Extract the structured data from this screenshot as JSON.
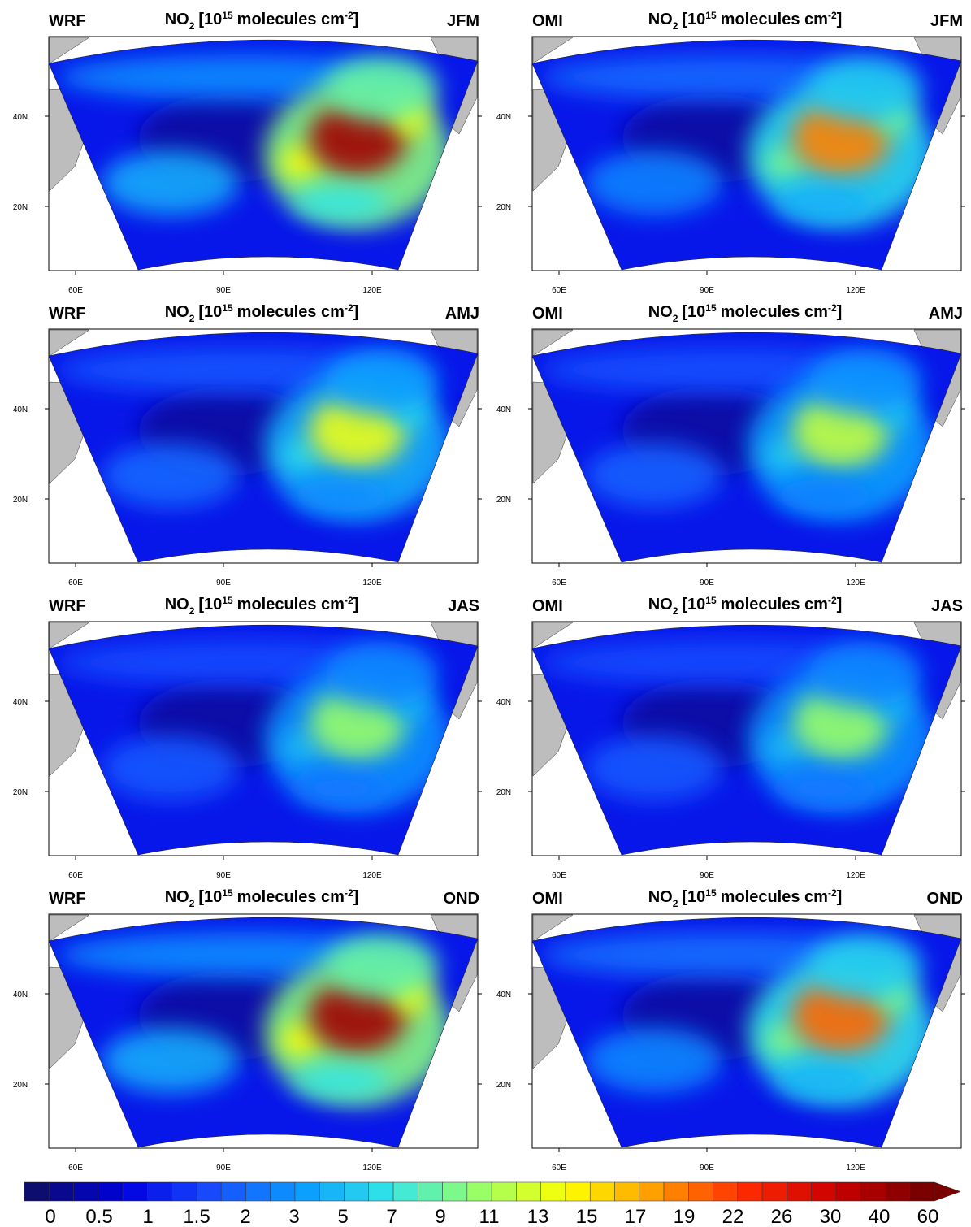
{
  "panels": [
    {
      "model": "WRF",
      "season": "JFM"
    },
    {
      "model": "OMI",
      "season": "JFM"
    },
    {
      "model": "WRF",
      "season": "AMJ"
    },
    {
      "model": "OMI",
      "season": "AMJ"
    },
    {
      "model": "WRF",
      "season": "JAS"
    },
    {
      "model": "OMI",
      "season": "JAS"
    },
    {
      "model": "WRF",
      "season": "OND"
    },
    {
      "model": "OMI",
      "season": "OND"
    }
  ],
  "panel_title": {
    "species": "NO",
    "species_sub": "2",
    "open": "[10",
    "exponent": "15",
    "unit": "molecules cm",
    "unit_exp": "-2",
    "close": "]"
  },
  "lon_labels": [
    "60E",
    "90E",
    "120E"
  ],
  "lat_labels": [
    "40N",
    "20N"
  ],
  "colorbar": {
    "labels": [
      0,
      0.5,
      1,
      1.5,
      2,
      3,
      5,
      7,
      9,
      11,
      13,
      15,
      17,
      19,
      22,
      26,
      30,
      40,
      60
    ],
    "colormap": [
      "#0d0d70",
      "#0000e0",
      "#1a4dff",
      "#0a9cff",
      "#33e6e6",
      "#99ff66",
      "#ffff00",
      "#ff9900",
      "#ff2a00",
      "#cc0000",
      "#7a0000"
    ]
  }
}
